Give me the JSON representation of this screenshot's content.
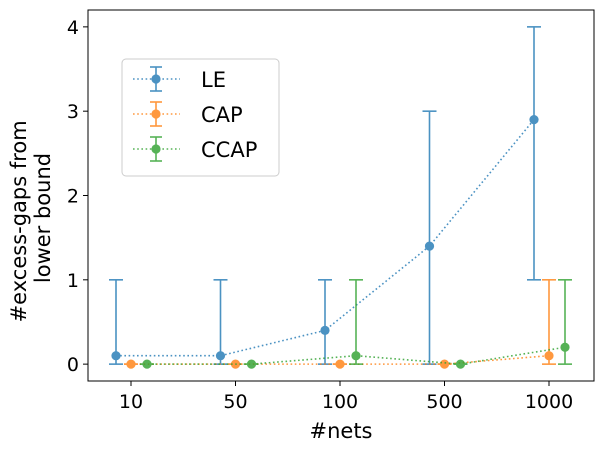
{
  "chart_data": {
    "type": "line",
    "title": "",
    "xlabel": "#nets",
    "ylabel_lines": [
      "#excess-gaps from",
      "lower bound"
    ],
    "categories": [
      "10",
      "50",
      "100",
      "500",
      "1000"
    ],
    "ylim": [
      -0.2,
      4.2
    ],
    "yticks": [
      "0",
      "1",
      "2",
      "3",
      "4"
    ],
    "grid": false,
    "legend_position": "upper-left",
    "series": [
      {
        "name": "LE",
        "color": "#1f77b4",
        "values": [
          0.1,
          0.1,
          0.4,
          1.4,
          2.9
        ],
        "err_low": [
          0,
          0,
          0,
          0,
          1
        ],
        "err_high": [
          1,
          1,
          1,
          3,
          4
        ]
      },
      {
        "name": "CAP",
        "color": "#ff7f0e",
        "values": [
          0,
          0,
          0,
          0,
          0.1
        ],
        "err_low": [
          0,
          0,
          0,
          0,
          0
        ],
        "err_high": [
          0,
          0,
          0,
          0,
          1
        ]
      },
      {
        "name": "CCAP",
        "color": "#2ca02c",
        "values": [
          0,
          0,
          0.1,
          0,
          0.2
        ],
        "err_low": [
          0,
          0,
          0,
          0,
          0
        ],
        "err_high": [
          0,
          0,
          1,
          0,
          1
        ]
      }
    ]
  }
}
